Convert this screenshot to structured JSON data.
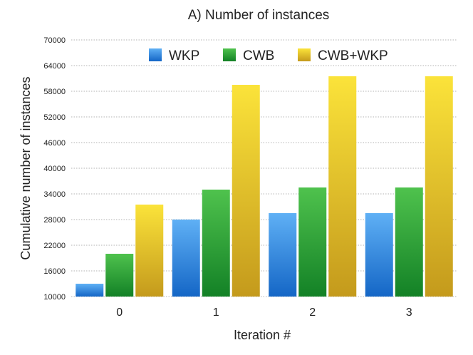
{
  "chart_data": {
    "type": "bar",
    "title": "A) Number of instances",
    "xlabel": "Iteration #",
    "ylabel": "Cumulative number of instances",
    "categories": [
      "0",
      "1",
      "2",
      "3"
    ],
    "y_ticks": [
      "10000",
      "16000",
      "22000",
      "28000",
      "34000",
      "40000",
      "46000",
      "52000",
      "58000",
      "64000",
      "70000"
    ],
    "ylim": [
      10000,
      70000
    ],
    "grid": true,
    "legend_position": "top",
    "series": [
      {
        "name": "WKP",
        "color": "#2f86dc",
        "values": [
          13000,
          28000,
          29500,
          29500
        ]
      },
      {
        "name": "CWB",
        "color": "#2ea03a",
        "values": [
          20000,
          35000,
          35500,
          35500
        ]
      },
      {
        "name": "CWB+WKP",
        "color": "#e6c022",
        "values": [
          31500,
          59500,
          61500,
          61500
        ]
      }
    ]
  }
}
